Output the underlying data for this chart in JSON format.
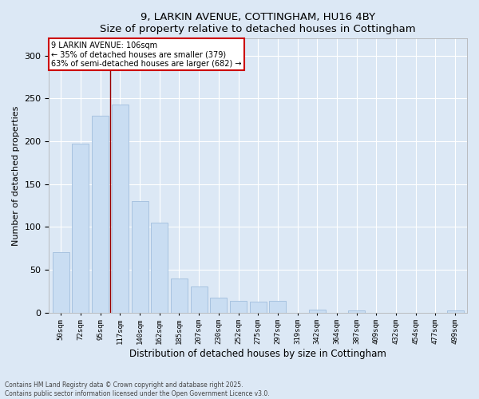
{
  "title_line1": "9, LARKIN AVENUE, COTTINGHAM, HU16 4BY",
  "title_line2": "Size of property relative to detached houses in Cottingham",
  "xlabel": "Distribution of detached houses by size in Cottingham",
  "ylabel": "Number of detached properties",
  "bar_color": "#c9ddf2",
  "bar_edge_color": "#a0bedd",
  "background_color": "#dce8f5",
  "categories": [
    "50sqm",
    "72sqm",
    "95sqm",
    "117sqm",
    "140sqm",
    "162sqm",
    "185sqm",
    "207sqm",
    "230sqm",
    "252sqm",
    "275sqm",
    "297sqm",
    "319sqm",
    "342sqm",
    "364sqm",
    "387sqm",
    "409sqm",
    "432sqm",
    "454sqm",
    "477sqm",
    "499sqm"
  ],
  "values": [
    70,
    197,
    230,
    243,
    130,
    105,
    40,
    30,
    17,
    14,
    13,
    14,
    0,
    3,
    0,
    2,
    0,
    0,
    0,
    0,
    2
  ],
  "ylim": [
    0,
    320
  ],
  "yticks": [
    0,
    50,
    100,
    150,
    200,
    250,
    300
  ],
  "property_size_idx": 2.5,
  "property_label": "9 LARKIN AVENUE: 106sqm",
  "annotation_line1": "← 35% of detached houses are smaller (379)",
  "annotation_line2": "63% of semi-detached houses are larger (682) →",
  "vline_color": "#990000",
  "annotation_box_color": "#ffffff",
  "annotation_box_edge": "#cc0000",
  "footer_line1": "Contains HM Land Registry data © Crown copyright and database right 2025.",
  "footer_line2": "Contains public sector information licensed under the Open Government Licence v3.0.",
  "n_bars": 21
}
